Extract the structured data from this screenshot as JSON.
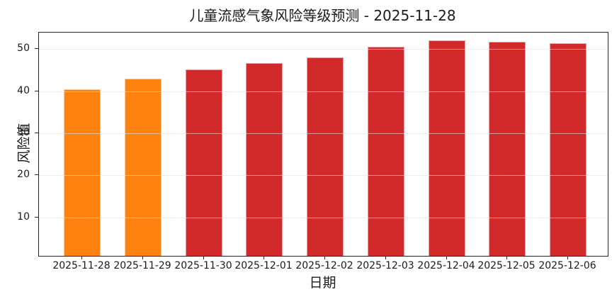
{
  "chart_data": {
    "type": "bar",
    "title": "儿童流感气象风险等级预测 - 2025-11-28",
    "xlabel": "日期",
    "ylabel": "风险值",
    "categories": [
      "2025-11-28",
      "2025-11-29",
      "2025-11-30",
      "2025-12-01",
      "2025-12-02",
      "2025-12-03",
      "2025-12-04",
      "2025-12-05",
      "2025-12-06"
    ],
    "values": [
      40.5,
      43.0,
      45.1,
      46.7,
      48.0,
      50.5,
      52.1,
      51.7,
      51.3
    ],
    "bar_colors": [
      "#fd8210",
      "#fd8210",
      "#d2292b",
      "#d2292b",
      "#d2292b",
      "#d2292b",
      "#d2292b",
      "#d2292b",
      "#d2292b"
    ],
    "yticks": [
      10,
      20,
      30,
      40,
      50
    ],
    "ylim": [
      0.9,
      53.9
    ],
    "grid": "horizontal, drawn above bars",
    "legend": "none",
    "colors": {
      "orange_bar": "#fd8210",
      "red_bar": "#d2292b",
      "gridline": "#e1e1e1",
      "spine": "#262626",
      "text": "#1a1a1a",
      "background": "#ffffff"
    }
  }
}
